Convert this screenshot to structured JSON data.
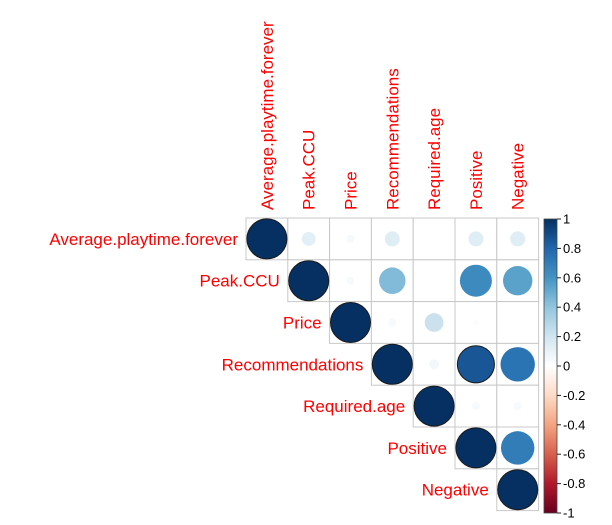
{
  "chart_data": {
    "type": "heatmap",
    "variables": [
      "Average.playtime.forever",
      "Peak.CCU",
      "Price",
      "Recommendations",
      "Required.age",
      "Positive",
      "Negative"
    ],
    "matrix": [
      [
        1.0,
        0.12,
        0.04,
        0.14,
        0.0,
        0.14,
        0.14
      ],
      [
        0.12,
        1.0,
        0.04,
        0.44,
        0.0,
        0.64,
        0.54
      ],
      [
        0.04,
        0.04,
        1.0,
        0.04,
        0.22,
        0.02,
        0.01
      ],
      [
        0.14,
        0.44,
        0.04,
        1.0,
        0.06,
        0.86,
        0.74
      ],
      [
        0.0,
        0.0,
        0.22,
        0.06,
        1.0,
        0.04,
        0.04
      ],
      [
        0.14,
        0.64,
        0.02,
        0.86,
        0.04,
        1.0,
        0.7
      ],
      [
        0.14,
        0.54,
        0.01,
        0.74,
        0.04,
        0.7,
        1.0
      ]
    ],
    "layout": "upper",
    "glyph": "circle",
    "label_color": "#ff0000",
    "colorbar": {
      "ticks": [
        "1",
        "0.8",
        "0.6",
        "0.4",
        "0.2",
        "0",
        "-0.2",
        "-0.4",
        "-0.6",
        "-0.8",
        "-1"
      ],
      "range": [
        -1,
        1
      ],
      "colors": [
        "#67001F",
        "#B2182B",
        "#D6604D",
        "#F4A582",
        "#FDDBC7",
        "#FFFFFF",
        "#D1E5F0",
        "#92C5DE",
        "#4393C3",
        "#2166AC",
        "#053061"
      ]
    }
  }
}
